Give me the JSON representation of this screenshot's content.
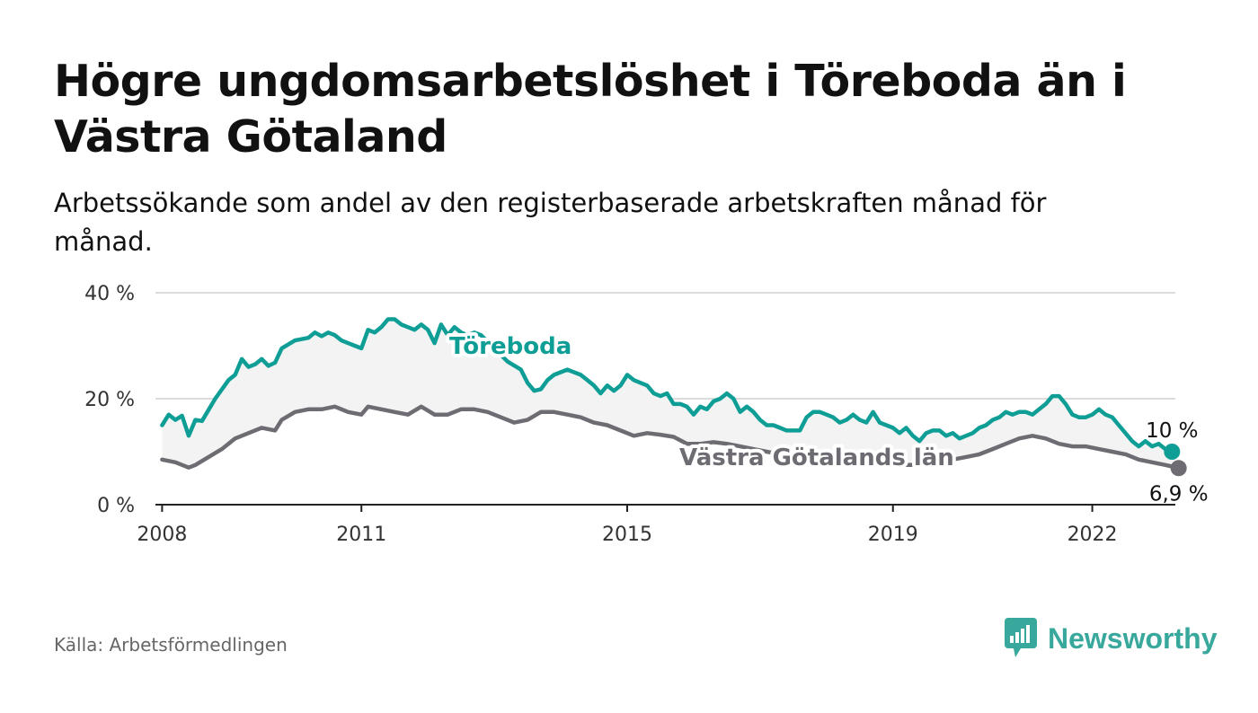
{
  "header": {
    "title": "Högre ungdomsarbetslöshet i Töreboda än i Västra Götaland",
    "subtitle": "Arbetssökande som andel av den registerbaserade arbetskraften månad för månad."
  },
  "footer": {
    "source": "Källa: Arbetsförmedlingen",
    "brand": "Newsworthy"
  },
  "colors": {
    "toreboda": "#0e9e96",
    "vastra": "#6e6c72",
    "grid": "#dcdcdc",
    "band": "#f3f3f3",
    "brand": "#38a89c"
  },
  "chart_data": {
    "type": "line",
    "title": "Högre ungdomsarbetslöshet i Töreboda än i Västra Götaland",
    "ylim": [
      0,
      40
    ],
    "yticks": [
      0,
      20,
      40
    ],
    "ytick_labels": [
      "0 %",
      "20 %",
      "40 %"
    ],
    "xlim": [
      2007.9,
      2023.25
    ],
    "xticks": [
      2008,
      2011,
      2015,
      2019,
      2022
    ],
    "xtick_labels": [
      "2008",
      "2011",
      "2015",
      "2019",
      "2022"
    ],
    "grid": true,
    "series": [
      {
        "name": "Töreboda",
        "label": "Töreboda",
        "end_label": "10 %",
        "points": [
          [
            2008.0,
            15
          ],
          [
            2008.1,
            17
          ],
          [
            2008.2,
            16
          ],
          [
            2008.3,
            16.8
          ],
          [
            2008.4,
            13
          ],
          [
            2008.5,
            16
          ],
          [
            2008.6,
            15.8
          ],
          [
            2008.8,
            20
          ],
          [
            2009.0,
            23.5
          ],
          [
            2009.1,
            24.5
          ],
          [
            2009.2,
            27.5
          ],
          [
            2009.3,
            26
          ],
          [
            2009.4,
            26.5
          ],
          [
            2009.5,
            27.5
          ],
          [
            2009.6,
            26.2
          ],
          [
            2009.7,
            26.8
          ],
          [
            2009.8,
            29.5
          ],
          [
            2010.0,
            31
          ],
          [
            2010.2,
            31.5
          ],
          [
            2010.3,
            32.5
          ],
          [
            2010.4,
            31.8
          ],
          [
            2010.5,
            32.5
          ],
          [
            2010.6,
            32
          ],
          [
            2010.7,
            31
          ],
          [
            2010.8,
            30.5
          ],
          [
            2010.9,
            30
          ],
          [
            2011.0,
            29.5
          ],
          [
            2011.1,
            33
          ],
          [
            2011.2,
            32.5
          ],
          [
            2011.3,
            33.5
          ],
          [
            2011.4,
            35
          ],
          [
            2011.5,
            35
          ],
          [
            2011.6,
            34
          ],
          [
            2011.7,
            33.5
          ],
          [
            2011.8,
            33
          ],
          [
            2011.9,
            34
          ],
          [
            2012.0,
            33
          ],
          [
            2012.1,
            30.5
          ],
          [
            2012.2,
            34
          ],
          [
            2012.3,
            32
          ],
          [
            2012.4,
            33.5
          ],
          [
            2012.5,
            32.5
          ],
          [
            2012.6,
            32
          ],
          [
            2012.7,
            32.5
          ],
          [
            2012.8,
            32
          ],
          [
            2013.2,
            27
          ],
          [
            2013.4,
            25.5
          ],
          [
            2013.5,
            23
          ],
          [
            2013.6,
            21.5
          ],
          [
            2013.7,
            21.8
          ],
          [
            2013.8,
            23.5
          ],
          [
            2013.9,
            24.5
          ],
          [
            2014.0,
            25
          ],
          [
            2014.1,
            25.5
          ],
          [
            2014.2,
            25
          ],
          [
            2014.3,
            24.5
          ],
          [
            2014.4,
            23.5
          ],
          [
            2014.5,
            22.5
          ],
          [
            2014.6,
            21
          ],
          [
            2014.7,
            22.5
          ],
          [
            2014.8,
            21.5
          ],
          [
            2014.9,
            22.5
          ],
          [
            2015.0,
            24.5
          ],
          [
            2015.1,
            23.5
          ],
          [
            2015.2,
            23
          ],
          [
            2015.3,
            22.5
          ],
          [
            2015.4,
            21
          ],
          [
            2015.5,
            20.5
          ],
          [
            2015.6,
            21
          ],
          [
            2015.7,
            19
          ],
          [
            2015.8,
            19
          ],
          [
            2015.9,
            18.5
          ],
          [
            2016.0,
            17
          ],
          [
            2016.1,
            18.5
          ],
          [
            2016.2,
            18
          ],
          [
            2016.3,
            19.5
          ],
          [
            2016.4,
            20
          ],
          [
            2016.5,
            21
          ],
          [
            2016.6,
            20
          ],
          [
            2016.7,
            17.5
          ],
          [
            2016.8,
            18.5
          ],
          [
            2016.9,
            17.5
          ],
          [
            2017.0,
            16
          ],
          [
            2017.1,
            15
          ],
          [
            2017.2,
            15
          ],
          [
            2017.3,
            14.5
          ],
          [
            2017.4,
            14
          ],
          [
            2017.5,
            14
          ],
          [
            2017.6,
            14
          ],
          [
            2017.7,
            16.5
          ],
          [
            2017.8,
            17.5
          ],
          [
            2017.9,
            17.5
          ],
          [
            2018.0,
            17
          ],
          [
            2018.1,
            16.5
          ],
          [
            2018.2,
            15.5
          ],
          [
            2018.3,
            16
          ],
          [
            2018.4,
            17
          ],
          [
            2018.5,
            16
          ],
          [
            2018.6,
            15.5
          ],
          [
            2018.7,
            17.5
          ],
          [
            2018.8,
            15.5
          ],
          [
            2018.9,
            15
          ],
          [
            2019.0,
            14.5
          ],
          [
            2019.1,
            13.5
          ],
          [
            2019.2,
            14.5
          ],
          [
            2019.3,
            13
          ],
          [
            2019.4,
            12
          ],
          [
            2019.5,
            13.5
          ],
          [
            2019.6,
            14
          ],
          [
            2019.7,
            14
          ],
          [
            2019.8,
            13
          ],
          [
            2019.9,
            13.5
          ],
          [
            2020.0,
            12.5
          ],
          [
            2020.1,
            13
          ],
          [
            2020.2,
            13.5
          ],
          [
            2020.3,
            14.5
          ],
          [
            2020.4,
            15
          ],
          [
            2020.5,
            16
          ],
          [
            2020.6,
            16.5
          ],
          [
            2020.7,
            17.5
          ],
          [
            2020.8,
            17
          ],
          [
            2020.9,
            17.5
          ],
          [
            2021.0,
            17.5
          ],
          [
            2021.1,
            17
          ],
          [
            2021.2,
            18
          ],
          [
            2021.3,
            19
          ],
          [
            2021.4,
            20.5
          ],
          [
            2021.5,
            20.5
          ],
          [
            2021.6,
            19
          ],
          [
            2021.7,
            17
          ],
          [
            2021.8,
            16.5
          ],
          [
            2021.9,
            16.5
          ],
          [
            2022.0,
            17
          ],
          [
            2022.1,
            18
          ],
          [
            2022.2,
            17
          ],
          [
            2022.3,
            16.5
          ],
          [
            2022.4,
            15
          ],
          [
            2022.5,
            13.5
          ],
          [
            2022.6,
            12
          ],
          [
            2022.7,
            11
          ],
          [
            2022.8,
            12
          ],
          [
            2022.9,
            11
          ],
          [
            2023.0,
            11.5
          ],
          [
            2023.1,
            10.5
          ],
          [
            2023.2,
            10
          ]
        ]
      },
      {
        "name": "Västra Götalands län",
        "label": "Västra Götalands län",
        "end_label": "6,9 %",
        "points": [
          [
            2008.0,
            8.5
          ],
          [
            2008.2,
            8
          ],
          [
            2008.4,
            7
          ],
          [
            2008.5,
            7.5
          ],
          [
            2008.7,
            9
          ],
          [
            2008.9,
            10.5
          ],
          [
            2009.1,
            12.5
          ],
          [
            2009.3,
            13.5
          ],
          [
            2009.5,
            14.5
          ],
          [
            2009.7,
            14
          ],
          [
            2009.8,
            16
          ],
          [
            2010.0,
            17.5
          ],
          [
            2010.2,
            18
          ],
          [
            2010.4,
            18
          ],
          [
            2010.6,
            18.5
          ],
          [
            2010.8,
            17.5
          ],
          [
            2011.0,
            17
          ],
          [
            2011.1,
            18.5
          ],
          [
            2011.3,
            18
          ],
          [
            2011.5,
            17.5
          ],
          [
            2011.7,
            17
          ],
          [
            2011.9,
            18.5
          ],
          [
            2012.1,
            17
          ],
          [
            2012.3,
            17
          ],
          [
            2012.5,
            18
          ],
          [
            2012.7,
            18
          ],
          [
            2012.9,
            17.5
          ],
          [
            2013.1,
            16.5
          ],
          [
            2013.3,
            15.5
          ],
          [
            2013.5,
            16
          ],
          [
            2013.7,
            17.5
          ],
          [
            2013.9,
            17.5
          ],
          [
            2014.1,
            17
          ],
          [
            2014.3,
            16.5
          ],
          [
            2014.5,
            15.5
          ],
          [
            2014.7,
            15
          ],
          [
            2014.9,
            14
          ],
          [
            2015.1,
            13
          ],
          [
            2015.3,
            13.5
          ],
          [
            2015.5,
            13.2
          ],
          [
            2015.7,
            12.8
          ],
          [
            2015.9,
            11.5
          ],
          [
            2016.1,
            11.5
          ],
          [
            2016.3,
            11.8
          ],
          [
            2016.5,
            11.5
          ],
          [
            2016.7,
            11
          ],
          [
            2016.9,
            10.5
          ],
          [
            2017.1,
            10
          ],
          [
            2017.3,
            9.5
          ],
          [
            2017.5,
            9.5
          ],
          [
            2017.7,
            9.2
          ],
          [
            2017.9,
            9
          ],
          [
            2018.1,
            8.7
          ],
          [
            2018.3,
            8.5
          ],
          [
            2018.5,
            8.3
          ],
          [
            2018.7,
            8.2
          ],
          [
            2018.9,
            8
          ],
          [
            2019.1,
            7.5
          ],
          [
            2019.3,
            7.5
          ],
          [
            2019.5,
            8
          ],
          [
            2019.7,
            8
          ],
          [
            2019.9,
            8.5
          ],
          [
            2020.1,
            9
          ],
          [
            2020.3,
            9.5
          ],
          [
            2020.5,
            10.5
          ],
          [
            2020.7,
            11.5
          ],
          [
            2020.9,
            12.5
          ],
          [
            2021.1,
            13
          ],
          [
            2021.3,
            12.5
          ],
          [
            2021.5,
            11.5
          ],
          [
            2021.7,
            11
          ],
          [
            2021.9,
            11
          ],
          [
            2022.1,
            10.5
          ],
          [
            2022.3,
            10
          ],
          [
            2022.5,
            9.5
          ],
          [
            2022.7,
            8.5
          ],
          [
            2022.9,
            8
          ],
          [
            2023.1,
            7.5
          ],
          [
            2023.2,
            7.2
          ],
          [
            2023.3,
            6.9
          ]
        ]
      }
    ]
  }
}
